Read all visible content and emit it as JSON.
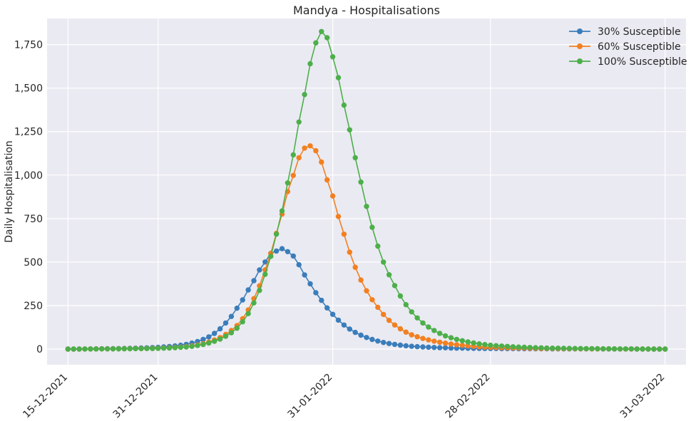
{
  "chart_data": {
    "type": "line",
    "title": "Mandya - Hospitalisations",
    "xlabel": "",
    "ylabel": "Daily Hospitalisation",
    "x_start": "15-12-2021",
    "x_end": "31-03-2022",
    "xtick_labels": [
      "15-12-2021",
      "31-12-2021",
      "31-01-2022",
      "28-02-2022",
      "31-03-2022"
    ],
    "ylim": [
      -90,
      1900
    ],
    "yticks": [
      0,
      250,
      500,
      750,
      1000,
      1250,
      1500,
      1750
    ],
    "ytick_labels": [
      "0",
      "250",
      "500",
      "750",
      "1,000",
      "1,250",
      "1,500",
      "1,750"
    ],
    "grid": true,
    "legend_position": "top-right",
    "series": [
      {
        "name": "30% Susceptible",
        "color": "#3a7dbb",
        "peak_date": "22-01-2022",
        "peak_value": 577,
        "control_points": [
          [
            "15-12-2021",
            0
          ],
          [
            "24-12-2021",
            3
          ],
          [
            "31-12-2021",
            10
          ],
          [
            "05-01-2022",
            27
          ],
          [
            "09-01-2022",
            70
          ],
          [
            "12-01-2022",
            150
          ],
          [
            "14-01-2022",
            235
          ],
          [
            "16-01-2022",
            340
          ],
          [
            "18-01-2022",
            455
          ],
          [
            "20-01-2022",
            550
          ],
          [
            "22-01-2022",
            577
          ],
          [
            "23-01-2022",
            560
          ],
          [
            "24-01-2022",
            535
          ],
          [
            "25-01-2022",
            485
          ],
          [
            "27-01-2022",
            375
          ],
          [
            "29-01-2022",
            280
          ],
          [
            "31-01-2022",
            200
          ],
          [
            "02-02-2022",
            138
          ],
          [
            "05-02-2022",
            80
          ],
          [
            "09-02-2022",
            38
          ],
          [
            "14-02-2022",
            16
          ],
          [
            "21-02-2022",
            6
          ],
          [
            "28-02-2022",
            3
          ],
          [
            "31-03-2022",
            0
          ]
        ]
      },
      {
        "name": "60% Susceptible",
        "color": "#f28021",
        "peak_date": "27-01-2022",
        "peak_value": 1168,
        "control_points": [
          [
            "15-12-2021",
            0
          ],
          [
            "31-12-2021",
            5
          ],
          [
            "05-01-2022",
            14
          ],
          [
            "10-01-2022",
            52
          ],
          [
            "14-01-2022",
            135
          ],
          [
            "17-01-2022",
            290
          ],
          [
            "19-01-2022",
            455
          ],
          [
            "21-01-2022",
            665
          ],
          [
            "23-01-2022",
            905
          ],
          [
            "25-01-2022",
            1100
          ],
          [
            "26-01-2022",
            1155
          ],
          [
            "27-01-2022",
            1168
          ],
          [
            "28-01-2022",
            1140
          ],
          [
            "29-01-2022",
            1075
          ],
          [
            "31-01-2022",
            880
          ],
          [
            "02-02-2022",
            660
          ],
          [
            "04-02-2022",
            470
          ],
          [
            "06-02-2022",
            335
          ],
          [
            "08-02-2022",
            240
          ],
          [
            "10-02-2022",
            165
          ],
          [
            "14-02-2022",
            82
          ],
          [
            "20-02-2022",
            34
          ],
          [
            "28-02-2022",
            10
          ],
          [
            "10-03-2022",
            3
          ],
          [
            "31-03-2022",
            0
          ]
        ]
      },
      {
        "name": "100% Susceptible",
        "color": "#4daf4a",
        "peak_date": "29-01-2022",
        "peak_value": 1825,
        "control_points": [
          [
            "15-12-2021",
            0
          ],
          [
            "31-12-2021",
            4
          ],
          [
            "05-01-2022",
            12
          ],
          [
            "10-01-2022",
            45
          ],
          [
            "14-01-2022",
            120
          ],
          [
            "17-01-2022",
            265
          ],
          [
            "19-01-2022",
            430
          ],
          [
            "21-01-2022",
            660
          ],
          [
            "23-01-2022",
            955
          ],
          [
            "25-01-2022",
            1305
          ],
          [
            "27-01-2022",
            1640
          ],
          [
            "28-01-2022",
            1760
          ],
          [
            "29-01-2022",
            1825
          ],
          [
            "30-01-2022",
            1790
          ],
          [
            "31-01-2022",
            1680
          ],
          [
            "01-02-2022",
            1560
          ],
          [
            "03-02-2022",
            1260
          ],
          [
            "05-02-2022",
            960
          ],
          [
            "07-02-2022",
            700
          ],
          [
            "09-02-2022",
            500
          ],
          [
            "11-02-2022",
            365
          ],
          [
            "13-02-2022",
            255
          ],
          [
            "16-02-2022",
            150
          ],
          [
            "20-02-2022",
            76
          ],
          [
            "28-02-2022",
            22
          ],
          [
            "10-03-2022",
            6
          ],
          [
            "31-03-2022",
            0
          ]
        ]
      }
    ]
  }
}
